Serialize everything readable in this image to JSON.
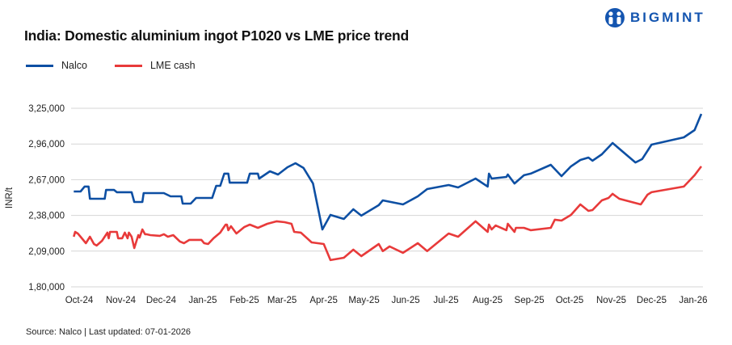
{
  "brand": {
    "logo_text": "BIGMINT",
    "color": "#1455b0"
  },
  "source": "Source: Nalco | Last updated: 07-01-2026",
  "chart_data": {
    "type": "line",
    "title": "India: Domestic aluminium ingot P1020 vs LME price trend",
    "ylabel": "INR/t",
    "xlabel": "",
    "ylim": [
      180000,
      325000
    ],
    "yticks": [
      325000,
      296000,
      267000,
      238000,
      209000,
      180000
    ],
    "ytick_labels": [
      "3,25,000",
      "2,96,000",
      "2,67,000",
      "2,38,000",
      "2,09,000",
      "1,80,000"
    ],
    "xtick_labels": [
      "Oct-24",
      "Nov-24",
      "Dec-24",
      "Jan-25",
      "Feb-25",
      "Mar-25",
      "Apr-25",
      "May-25",
      "Jun-25",
      "Jul-25",
      "Aug-25",
      "Sep-25",
      "Oct-25",
      "Nov-25",
      "Dec-25",
      "Jan-26"
    ],
    "xticks": [
      "2024-10-01",
      "2024-11-01",
      "2024-12-01",
      "2025-01-01",
      "2025-02-01",
      "2025-03-01",
      "2025-04-01",
      "2025-05-01",
      "2025-06-01",
      "2025-07-01",
      "2025-08-01",
      "2025-09-01",
      "2025-10-01",
      "2025-11-01",
      "2025-12-01",
      "2026-01-01"
    ],
    "grid": "horizontal",
    "legend_position": "top-left",
    "series": [
      {
        "name": "Nalco",
        "color": "#0d4fa3",
        "points": [
          [
            "2024-09-27",
            257400
          ],
          [
            "2024-10-02",
            257400
          ],
          [
            "2024-10-05",
            261400
          ],
          [
            "2024-10-08",
            261400
          ],
          [
            "2024-10-09",
            251500
          ],
          [
            "2024-10-20",
            251500
          ],
          [
            "2024-10-21",
            258700
          ],
          [
            "2024-10-27",
            258700
          ],
          [
            "2024-10-29",
            256800
          ],
          [
            "2024-11-09",
            256800
          ],
          [
            "2024-11-11",
            248900
          ],
          [
            "2024-11-17",
            248900
          ],
          [
            "2024-11-18",
            256100
          ],
          [
            "2024-12-03",
            256100
          ],
          [
            "2024-12-08",
            253500
          ],
          [
            "2024-12-16",
            253500
          ],
          [
            "2024-12-17",
            247600
          ],
          [
            "2024-12-23",
            247600
          ],
          [
            "2024-12-27",
            252200
          ],
          [
            "2025-01-08",
            252200
          ],
          [
            "2025-01-11",
            262000
          ],
          [
            "2025-01-14",
            262000
          ],
          [
            "2025-01-17",
            271900
          ],
          [
            "2025-01-20",
            271900
          ],
          [
            "2025-01-21",
            264600
          ],
          [
            "2025-02-03",
            264600
          ],
          [
            "2025-02-05",
            271900
          ],
          [
            "2025-02-11",
            271900
          ],
          [
            "2025-02-12",
            267900
          ],
          [
            "2025-02-20",
            273800
          ],
          [
            "2025-02-26",
            271200
          ],
          [
            "2025-03-05",
            277100
          ],
          [
            "2025-03-11",
            280400
          ],
          [
            "2025-03-17",
            276500
          ],
          [
            "2025-03-24",
            263900
          ],
          [
            "2025-03-31",
            226600
          ],
          [
            "2025-04-06",
            238400
          ],
          [
            "2025-04-16",
            235100
          ],
          [
            "2025-04-23",
            243000
          ],
          [
            "2025-04-29",
            237800
          ],
          [
            "2025-05-12",
            246300
          ],
          [
            "2025-05-15",
            250200
          ],
          [
            "2025-05-30",
            246900
          ],
          [
            "2025-06-10",
            253500
          ],
          [
            "2025-06-17",
            259400
          ],
          [
            "2025-07-03",
            262700
          ],
          [
            "2025-07-10",
            260700
          ],
          [
            "2025-07-23",
            267900
          ],
          [
            "2025-08-01",
            261400
          ],
          [
            "2025-08-02",
            271900
          ],
          [
            "2025-08-04",
            267900
          ],
          [
            "2025-08-15",
            269200
          ],
          [
            "2025-08-16",
            271200
          ],
          [
            "2025-08-21",
            263900
          ],
          [
            "2025-08-28",
            270600
          ],
          [
            "2025-09-02",
            271900
          ],
          [
            "2025-09-17",
            279100
          ],
          [
            "2025-09-25",
            269900
          ],
          [
            "2025-10-02",
            277800
          ],
          [
            "2025-10-09",
            283000
          ],
          [
            "2025-10-15",
            285000
          ],
          [
            "2025-10-18",
            282400
          ],
          [
            "2025-10-25",
            287600
          ],
          [
            "2025-11-02",
            296800
          ],
          [
            "2025-11-19",
            281000
          ],
          [
            "2025-11-24",
            283700
          ],
          [
            "2025-12-01",
            295500
          ],
          [
            "2025-12-25",
            301400
          ],
          [
            "2026-01-02",
            307300
          ],
          [
            "2026-01-07",
            320400
          ]
        ]
      },
      {
        "name": "LME cash",
        "color": "#e83a3a",
        "points": [
          [
            "2024-09-27",
            220700
          ],
          [
            "2024-09-28",
            224600
          ],
          [
            "2024-09-30",
            223300
          ],
          [
            "2024-10-02",
            220700
          ],
          [
            "2024-10-06",
            215400
          ],
          [
            "2024-10-09",
            220700
          ],
          [
            "2024-10-12",
            214800
          ],
          [
            "2024-10-14",
            213500
          ],
          [
            "2024-10-18",
            217400
          ],
          [
            "2024-10-22",
            224000
          ],
          [
            "2024-10-23",
            219400
          ],
          [
            "2024-10-24",
            224600
          ],
          [
            "2024-10-29",
            224600
          ],
          [
            "2024-10-30",
            219400
          ],
          [
            "2024-11-02",
            219400
          ],
          [
            "2024-11-04",
            224000
          ],
          [
            "2024-11-06",
            219400
          ],
          [
            "2024-11-07",
            224000
          ],
          [
            "2024-11-09",
            220700
          ],
          [
            "2024-11-11",
            211500
          ],
          [
            "2024-11-14",
            222000
          ],
          [
            "2024-11-15",
            220000
          ],
          [
            "2024-11-17",
            226600
          ],
          [
            "2024-11-19",
            222700
          ],
          [
            "2024-11-20",
            222700
          ],
          [
            "2024-11-23",
            222000
          ],
          [
            "2024-11-30",
            221400
          ],
          [
            "2024-12-03",
            222700
          ],
          [
            "2024-12-06",
            220700
          ],
          [
            "2024-12-10",
            222000
          ],
          [
            "2024-12-15",
            216800
          ],
          [
            "2024-12-18",
            215400
          ],
          [
            "2024-12-22",
            218100
          ],
          [
            "2024-12-31",
            218100
          ],
          [
            "2025-01-02",
            215400
          ],
          [
            "2025-01-05",
            214800
          ],
          [
            "2025-01-09",
            219400
          ],
          [
            "2025-01-14",
            224000
          ],
          [
            "2025-01-16",
            227300
          ],
          [
            "2025-01-18",
            230500
          ],
          [
            "2025-01-19",
            230500
          ],
          [
            "2025-01-20",
            226000
          ],
          [
            "2025-01-22",
            229200
          ],
          [
            "2025-01-26",
            223300
          ],
          [
            "2025-02-01",
            228600
          ],
          [
            "2025-02-05",
            230500
          ],
          [
            "2025-02-11",
            227900
          ],
          [
            "2025-02-18",
            231200
          ],
          [
            "2025-02-25",
            233200
          ],
          [
            "2025-03-03",
            232500
          ],
          [
            "2025-03-08",
            231200
          ],
          [
            "2025-03-10",
            224600
          ],
          [
            "2025-03-15",
            224000
          ],
          [
            "2025-03-23",
            216100
          ],
          [
            "2025-04-01",
            214800
          ],
          [
            "2025-04-06",
            201700
          ],
          [
            "2025-04-16",
            203600
          ],
          [
            "2025-04-23",
            210200
          ],
          [
            "2025-04-29",
            204900
          ],
          [
            "2025-05-12",
            214800
          ],
          [
            "2025-05-15",
            209000
          ],
          [
            "2025-05-20",
            212800
          ],
          [
            "2025-05-30",
            207600
          ],
          [
            "2025-06-10",
            215400
          ],
          [
            "2025-06-17",
            209000
          ],
          [
            "2025-07-03",
            223300
          ],
          [
            "2025-07-10",
            220700
          ],
          [
            "2025-07-23",
            233200
          ],
          [
            "2025-08-01",
            224600
          ],
          [
            "2025-08-02",
            230500
          ],
          [
            "2025-08-04",
            226600
          ],
          [
            "2025-08-07",
            229800
          ],
          [
            "2025-08-15",
            226000
          ],
          [
            "2025-08-16",
            231200
          ],
          [
            "2025-08-21",
            224600
          ],
          [
            "2025-08-22",
            227900
          ],
          [
            "2025-08-28",
            227900
          ],
          [
            "2025-09-02",
            226000
          ],
          [
            "2025-09-17",
            227900
          ],
          [
            "2025-09-20",
            234500
          ],
          [
            "2025-09-25",
            233800
          ],
          [
            "2025-10-02",
            238400
          ],
          [
            "2025-10-09",
            246900
          ],
          [
            "2025-10-15",
            241700
          ],
          [
            "2025-10-18",
            242300
          ],
          [
            "2025-10-25",
            250200
          ],
          [
            "2025-10-30",
            252200
          ],
          [
            "2025-11-02",
            255500
          ],
          [
            "2025-11-07",
            251500
          ],
          [
            "2025-11-23",
            246900
          ],
          [
            "2025-11-28",
            254800
          ],
          [
            "2025-12-01",
            256800
          ],
          [
            "2025-12-25",
            261400
          ],
          [
            "2026-01-02",
            270600
          ],
          [
            "2026-01-07",
            277800
          ]
        ]
      }
    ]
  }
}
